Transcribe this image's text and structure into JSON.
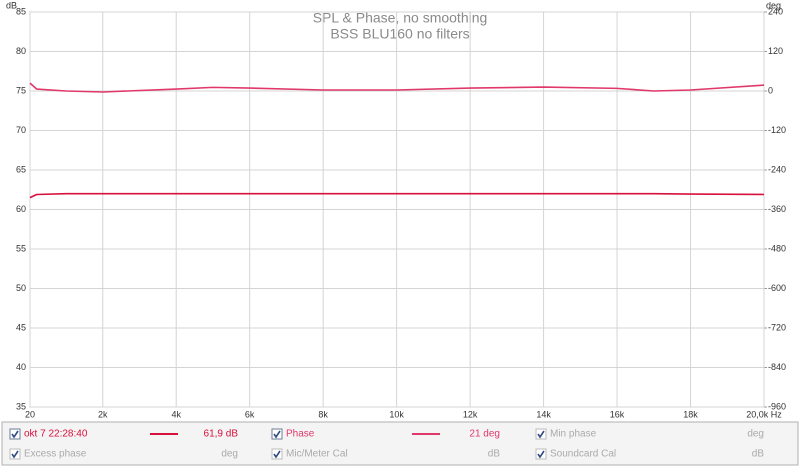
{
  "chart_data": {
    "type": "line",
    "title": "SPL & Phase, no smoothing",
    "subtitle": "BSS BLU160 no filters",
    "ylabel": "dB",
    "y2label": "deg",
    "x": [
      20,
      200,
      1000,
      2000,
      4000,
      5000,
      6000,
      8000,
      10000,
      12000,
      14000,
      16000,
      17000,
      18000,
      20000
    ],
    "xlim": [
      20,
      20000
    ],
    "xticks": [
      20,
      {
        "value": 2000,
        "label": "2k"
      },
      {
        "value": 4000,
        "label": "4k"
      },
      {
        "value": 6000,
        "label": "6k"
      },
      {
        "value": 8000,
        "label": "8k"
      },
      {
        "value": 10000,
        "label": "10k"
      },
      {
        "value": 12000,
        "label": "12k"
      },
      {
        "value": 14000,
        "label": "14k"
      },
      {
        "value": 16000,
        "label": "16k"
      },
      {
        "value": 18000,
        "label": "18k"
      },
      {
        "value": 20000,
        "label": "20,0k Hz"
      }
    ],
    "ylim": [
      35,
      85
    ],
    "yticks": [
      35,
      40,
      45,
      50,
      55,
      60,
      65,
      70,
      75,
      80,
      85
    ],
    "y2lim": [
      -960,
      240
    ],
    "y2ticks": [
      -960,
      -840,
      -720,
      -600,
      -480,
      -360,
      -240,
      -120,
      0,
      120,
      240
    ],
    "grid": true,
    "series": [
      {
        "name": "okt 7 22:28:40",
        "color": "#d8103c",
        "readout": "61,9 dB",
        "values": [
          61.5,
          61.9,
          62,
          62,
          62,
          62,
          62,
          62,
          62,
          62,
          62,
          62,
          62,
          61.95,
          61.9
        ]
      },
      {
        "name": "Phase",
        "color": "#e0386a",
        "axis": "y2",
        "readout": "21 deg",
        "values": [
          24,
          6,
          0,
          -3,
          6,
          11,
          9,
          3,
          3,
          9,
          12,
          8,
          0,
          3,
          18
        ]
      }
    ],
    "legend_extra": [
      {
        "name": "Min phase",
        "unit": "deg"
      },
      {
        "name": "Excess phase",
        "unit": "deg"
      },
      {
        "name": "Mic/Meter Cal",
        "unit": "dB"
      },
      {
        "name": "Soundcard Cal",
        "unit": "dB"
      }
    ]
  }
}
